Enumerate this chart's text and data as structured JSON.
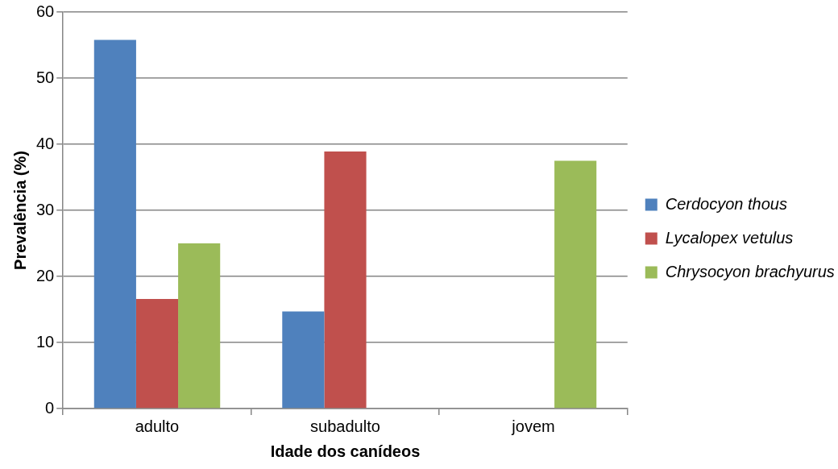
{
  "chart_data": {
    "type": "bar",
    "xlabel": "Idade dos canídeos",
    "ylabel": "Prevalência (%)",
    "categories": [
      "adulto",
      "subadulto",
      "jovem"
    ],
    "series": [
      {
        "name": "Cerdocyon thous",
        "color": "#4f81bd",
        "values": [
          55.8,
          14.7,
          0
        ]
      },
      {
        "name": "Lycalopex vetulus",
        "color": "#c0504d",
        "values": [
          16.6,
          38.9,
          0
        ]
      },
      {
        "name": "Chrysocyon brachyurus",
        "color": "#9bbb59",
        "values": [
          25.0,
          0,
          37.5
        ]
      }
    ],
    "ylim": [
      0,
      60
    ],
    "yticks": [
      0,
      10,
      20,
      30,
      40,
      50,
      60
    ],
    "grid": "y",
    "legend": "right"
  }
}
